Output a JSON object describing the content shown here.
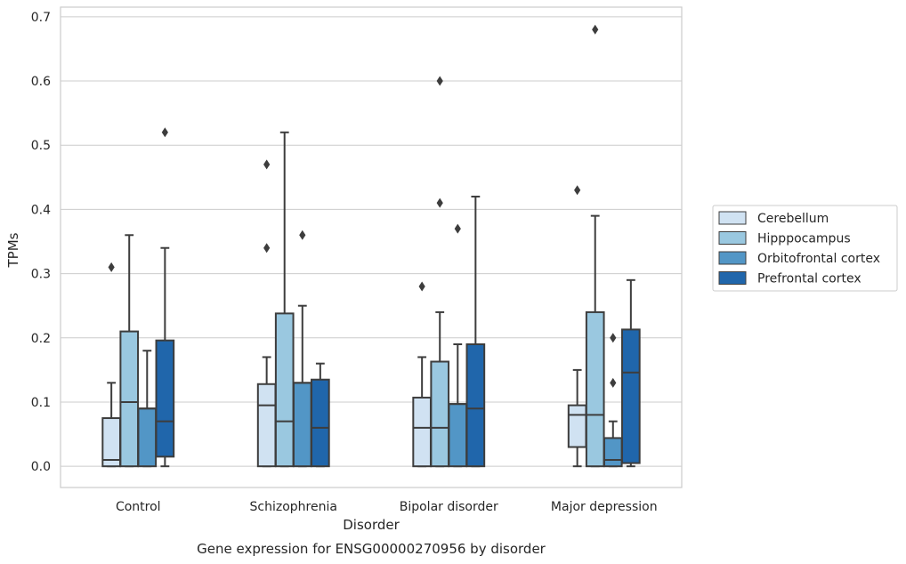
{
  "chart_data": {
    "type": "box",
    "title": "",
    "caption": "Gene expression for ENSG00000270956 by disorder",
    "xlabel": "Disorder",
    "ylabel": "TPMs",
    "ylim": [
      -0.033,
      0.715
    ],
    "yticks": [
      "0.0",
      "0.1",
      "0.2",
      "0.3",
      "0.4",
      "0.5",
      "0.6",
      "0.7"
    ],
    "ytick_values": [
      0,
      0.1,
      0.2,
      0.3,
      0.4,
      0.5,
      0.6,
      0.7
    ],
    "grid": "horizontal",
    "legend_position": "right",
    "categories": [
      "Control",
      "Schizophrenia",
      "Bipolar disorder",
      "Major depression"
    ],
    "series": [
      {
        "name": "Cerebellum",
        "color": "#d0e2f2",
        "boxes": [
          {
            "min": 0.0,
            "q1": 0.0,
            "median": 0.01,
            "q3": 0.075,
            "max": 0.13,
            "outliers": [
              0.31
            ]
          },
          {
            "min": 0.0,
            "q1": 0.0,
            "median": 0.095,
            "q3": 0.128,
            "max": 0.17,
            "outliers": [
              0.34,
              0.47
            ]
          },
          {
            "min": 0.0,
            "q1": 0.0,
            "median": 0.06,
            "q3": 0.107,
            "max": 0.17,
            "outliers": [
              0.28
            ]
          },
          {
            "min": 0.0,
            "q1": 0.03,
            "median": 0.08,
            "q3": 0.095,
            "max": 0.15,
            "outliers": [
              0.43
            ]
          }
        ]
      },
      {
        "name": "Hipppocampus",
        "color": "#9ac8e0",
        "boxes": [
          {
            "min": 0.0,
            "q1": 0.0,
            "median": 0.1,
            "q3": 0.21,
            "max": 0.36,
            "outliers": []
          },
          {
            "min": 0.0,
            "q1": 0.0,
            "median": 0.07,
            "q3": 0.238,
            "max": 0.52,
            "outliers": []
          },
          {
            "min": 0.0,
            "q1": 0.0,
            "median": 0.06,
            "q3": 0.163,
            "max": 0.24,
            "outliers": [
              0.41,
              0.6
            ]
          },
          {
            "min": 0.0,
            "q1": 0.0,
            "median": 0.08,
            "q3": 0.24,
            "max": 0.39,
            "outliers": [
              0.68
            ]
          }
        ]
      },
      {
        "name": "Orbitofrontal cortex",
        "color": "#5296c6",
        "boxes": [
          {
            "min": 0.0,
            "q1": 0.0,
            "median": 0.09,
            "q3": 0.09,
            "max": 0.18,
            "outliers": []
          },
          {
            "min": 0.0,
            "q1": 0.0,
            "median": 0.13,
            "q3": 0.13,
            "max": 0.25,
            "outliers": [
              0.36
            ]
          },
          {
            "min": 0.0,
            "q1": 0.0,
            "median": 0.097,
            "q3": 0.097,
            "max": 0.19,
            "outliers": [
              0.37
            ]
          },
          {
            "min": 0.0,
            "q1": 0.0,
            "median": 0.01,
            "q3": 0.044,
            "max": 0.07,
            "outliers": [
              0.13,
              0.2
            ]
          }
        ]
      },
      {
        "name": "Prefrontal cortex",
        "color": "#2066ab",
        "boxes": [
          {
            "min": 0.0,
            "q1": 0.015,
            "median": 0.07,
            "q3": 0.196,
            "max": 0.34,
            "outliers": [
              0.52
            ]
          },
          {
            "min": 0.0,
            "q1": 0.0,
            "median": 0.06,
            "q3": 0.135,
            "max": 0.16,
            "outliers": []
          },
          {
            "min": 0.0,
            "q1": 0.0,
            "median": 0.09,
            "q3": 0.19,
            "max": 0.42,
            "outliers": []
          },
          {
            "min": 0.0,
            "q1": 0.005,
            "median": 0.146,
            "q3": 0.213,
            "max": 0.29,
            "outliers": []
          }
        ]
      }
    ]
  }
}
